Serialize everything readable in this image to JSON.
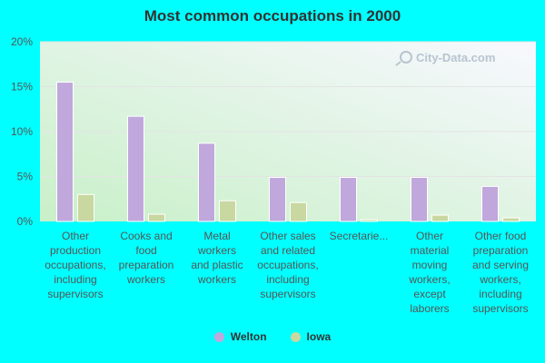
{
  "chart_data": {
    "type": "bar",
    "title": "Most common occupations in 2000",
    "xlabel": "",
    "ylabel": "",
    "ylim": [
      0,
      20
    ],
    "y_ticks": [
      "0%",
      "5%",
      "10%",
      "15%",
      "20%"
    ],
    "y_tick_values": [
      0,
      5,
      10,
      15,
      20
    ],
    "grid": true,
    "legend_placement": "bottom",
    "categories": [
      "Other production occupations, including supervisors",
      "Cooks and food preparation workers",
      "Metal workers and plastic workers",
      "Other sales and related occupations, including supervisors",
      "Secretarie...",
      "Other material moving workers, except laborers",
      "Other food preparation and serving workers, including supervisors"
    ],
    "category_lines": [
      [
        "Other",
        "production",
        "occupations,",
        "including",
        "supervisors"
      ],
      [
        "Cooks and",
        "food",
        "preparation",
        "workers"
      ],
      [
        "Metal",
        "workers",
        "and plastic",
        "workers"
      ],
      [
        "Other sales",
        "and related",
        "occupations,",
        "including",
        "supervisors"
      ],
      [
        "Secretarie..."
      ],
      [
        "Other",
        "material",
        "moving",
        "workers,",
        "except",
        "laborers"
      ],
      [
        "Other food",
        "preparation",
        "and serving",
        "workers,",
        "including",
        "supervisors"
      ]
    ],
    "series": [
      {
        "name": "Welton",
        "color": "#C0A8DC",
        "values": [
          15.5,
          11.7,
          8.7,
          4.9,
          4.9,
          4.9,
          3.9
        ]
      },
      {
        "name": "Iowa",
        "color": "#C8D8A0",
        "values": [
          3.0,
          0.8,
          2.3,
          2.1,
          0.2,
          0.7,
          0.4
        ]
      }
    ]
  },
  "colors": {
    "page_background": "#00FFFF",
    "plot_bg_left": "#C8F0C8",
    "plot_bg_right": "#F8F8FF",
    "gridline": "#E4E4E4",
    "axis_text": "#555555",
    "title_text": "#333333"
  },
  "watermark_text": "City-Data.com"
}
